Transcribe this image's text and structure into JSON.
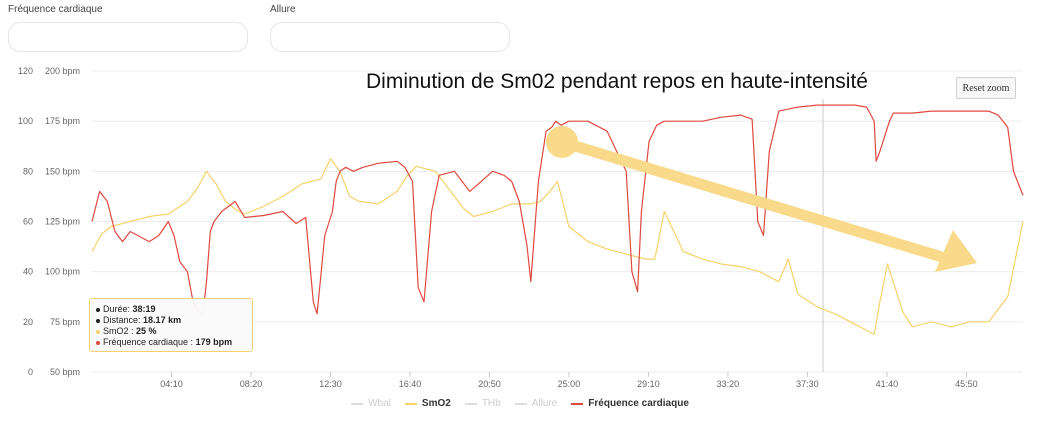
{
  "fields": [
    {
      "label": "Fréquence cardiaque",
      "value": ""
    },
    {
      "label": "Allure",
      "value": ""
    }
  ],
  "annotation": "Diminution de Sm02 pendant repos en haute-intensité",
  "reset_zoom_label": "Reset zoom",
  "tooltip": {
    "duree_label": "Durée:",
    "duree_value": "38:19",
    "distance_label": "Distance:",
    "distance_value": "18.17 km",
    "smo2_label": "SmO2 :",
    "smo2_value": "25 %",
    "hr_label": "Fréquence cardiaque :",
    "hr_value": "179 bpm"
  },
  "colors": {
    "smo2": "#f6d26b",
    "hr": "#e0493f",
    "hidden": "#dddddd",
    "grid": "#ececec",
    "crosshair": "#cccccc",
    "arrow": "#f9d98a"
  },
  "chart_data": {
    "type": "line",
    "x_ticks": [
      "04:10",
      "08:20",
      "12:30",
      "16:40",
      "20:50",
      "25:00",
      "29:10",
      "33:20",
      "37:30",
      "41:40",
      "45:50"
    ],
    "xlim": [
      0,
      48.8
    ],
    "y_left_ticks": [
      "0",
      "20",
      "40",
      "60",
      "80",
      "100",
      "120"
    ],
    "y_left_range": [
      0,
      120
    ],
    "y_right_ticks": [
      "50 bpm",
      "75 bpm",
      "100 bpm",
      "125 bpm",
      "150 bpm",
      "175 bpm",
      "200 bpm"
    ],
    "y_right_range": [
      50,
      200
    ],
    "crosshair_x": 38.32,
    "legend": [
      {
        "name": "Wbal",
        "visible": false
      },
      {
        "name": "SmO2",
        "visible": true
      },
      {
        "name": "THb",
        "visible": false
      },
      {
        "name": "Allure",
        "visible": false
      },
      {
        "name": "Fréquence cardiaque",
        "visible": true
      }
    ],
    "series": [
      {
        "name": "SmO2",
        "axis": "left",
        "x": [
          0,
          0.5,
          1,
          2,
          3,
          4,
          5,
          5.5,
          6,
          6.5,
          7,
          7.5,
          8,
          9,
          10,
          11,
          12,
          12.5,
          13,
          13.5,
          14,
          15,
          16,
          16.5,
          17,
          18,
          19,
          19.5,
          20,
          21,
          22,
          23,
          23.5,
          24,
          24.4,
          25,
          26,
          27,
          28,
          29,
          29.5,
          30,
          31,
          32,
          33,
          34,
          35,
          35.5,
          36,
          36.5,
          37,
          38,
          39,
          40,
          40.5,
          41,
          41.3,
          41.7,
          42.5,
          43,
          44,
          45,
          46,
          47,
          48,
          48.8
        ],
        "y": [
          48,
          55,
          58,
          60,
          62,
          63,
          68,
          73,
          80,
          75,
          68,
          65,
          63,
          66,
          70,
          75,
          77,
          85,
          80,
          70,
          68,
          67,
          72,
          78,
          82,
          80,
          70,
          65,
          62,
          64,
          67,
          67,
          68,
          72,
          76,
          58,
          52,
          49,
          47,
          45,
          45,
          64,
          48,
          45,
          43,
          42,
          40,
          38,
          36,
          45,
          31,
          26,
          23,
          19,
          17,
          15,
          28,
          43,
          24,
          18,
          20,
          18,
          20,
          20,
          30,
          60
        ]
      },
      {
        "name": "Fréquence cardiaque",
        "axis": "right",
        "x": [
          0,
          0.4,
          0.8,
          1.2,
          1.6,
          2,
          3,
          3.5,
          4,
          4.3,
          4.6,
          5,
          5.3,
          5.6,
          5.8,
          6,
          6.2,
          6.4,
          6.8,
          7.5,
          8,
          9,
          10,
          10.7,
          11.2,
          11.6,
          11.8,
          12.2,
          12.6,
          12.8,
          13,
          13.3,
          13.7,
          14.2,
          15,
          16,
          16.4,
          16.8,
          17.1,
          17.4,
          17.8,
          18.2,
          19,
          19.4,
          19.8,
          20.4,
          21,
          21.6,
          22,
          22.4,
          22.8,
          23,
          23.4,
          23.8,
          24.1,
          24.3,
          24.6,
          25,
          26,
          27,
          28,
          28.3,
          28.6,
          28.8,
          29.2,
          29.6,
          30,
          31,
          32,
          33,
          34,
          34.6,
          34.9,
          35.2,
          35.5,
          36,
          37,
          38,
          39,
          40,
          40.6,
          41,
          41.1,
          41.3,
          41.8,
          42,
          43,
          44,
          45,
          46,
          47,
          47.5,
          48,
          48.3,
          48.8
        ],
        "y": [
          125,
          140,
          135,
          120,
          115,
          120,
          115,
          118,
          125,
          118,
          105,
          100,
          85,
          80,
          78,
          95,
          120,
          125,
          130,
          135,
          127,
          128,
          130,
          124,
          127,
          85,
          79,
          118,
          130,
          145,
          150,
          152,
          150,
          152,
          154,
          155,
          152,
          145,
          92,
          85,
          130,
          148,
          150,
          145,
          140,
          145,
          150,
          148,
          145,
          135,
          113,
          95,
          145,
          170,
          172,
          175,
          173,
          175,
          175,
          170,
          150,
          100,
          90,
          130,
          165,
          173,
          175,
          175,
          175,
          177,
          178,
          176,
          125,
          118,
          160,
          180,
          182,
          183,
          183,
          183,
          182,
          175,
          155,
          160,
          175,
          179,
          179,
          180,
          180,
          180,
          180,
          178,
          172,
          150,
          138
        ]
      }
    ]
  }
}
